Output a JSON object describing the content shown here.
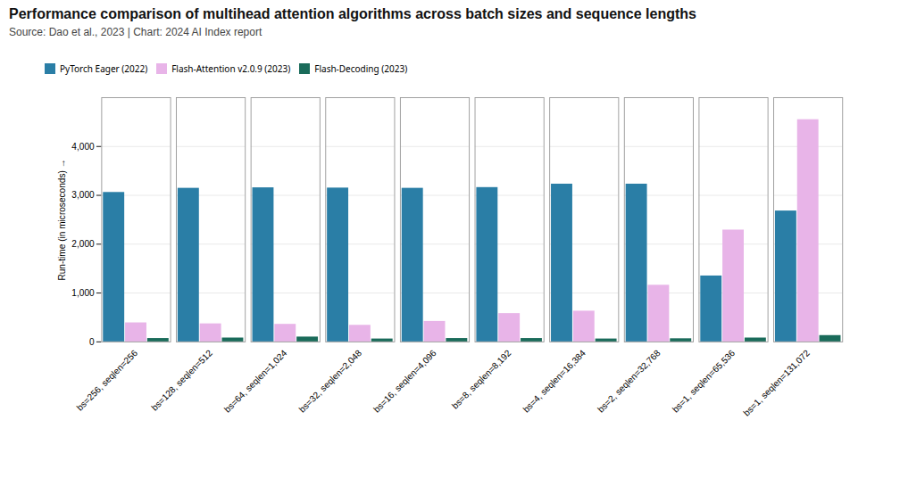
{
  "chart_data": {
    "type": "bar",
    "title": "Performance comparison of multihead attention algorithms across batch sizes and sequence lengths",
    "subtitle": "Source: Dao et al., 2023 | Chart: 2024 AI Index report",
    "ylabel": "Run-time (in microseconds)",
    "categories": [
      "bs=256, seqlen=256",
      "bs=128, seqlen=512",
      "bs=64, seqlen=1,024",
      "bs=32, seqlen=2,048",
      "bs=16, seqlen=4,096",
      "bs=8, seqlen=8,192",
      "bs=4, seqlen=16,384",
      "bs=2, seqlen=32,768",
      "bs=1, seqlen=65,536",
      "bs=1, seqlen=131,072"
    ],
    "series": [
      {
        "name": "PyTorch Eager (2022)",
        "color": "#2a7ea6",
        "values": [
          3060,
          3145,
          3155,
          3150,
          3145,
          3160,
          3230,
          3230,
          1350,
          2680
        ]
      },
      {
        "name": "Flash-Attention v2.0.9 (2023)",
        "color": "#e8b4e8",
        "values": [
          390,
          370,
          360,
          340,
          420,
          580,
          630,
          1160,
          2290,
          4550
        ]
      },
      {
        "name": "Flash-Decoding (2023)",
        "color": "#1a6b5a",
        "values": [
          70,
          80,
          100,
          60,
          70,
          70,
          60,
          65,
          80,
          130
        ]
      }
    ],
    "ylim": [
      0,
      5000
    ],
    "yticks": [
      0,
      {
        "value": 1000,
        "label": "1,000"
      },
      {
        "value": 2000,
        "label": "2,000"
      },
      {
        "value": 3000,
        "label": "3,000"
      },
      {
        "value": 4000,
        "label": "4,000"
      }
    ],
    "grid": true,
    "legend": "upper left"
  }
}
